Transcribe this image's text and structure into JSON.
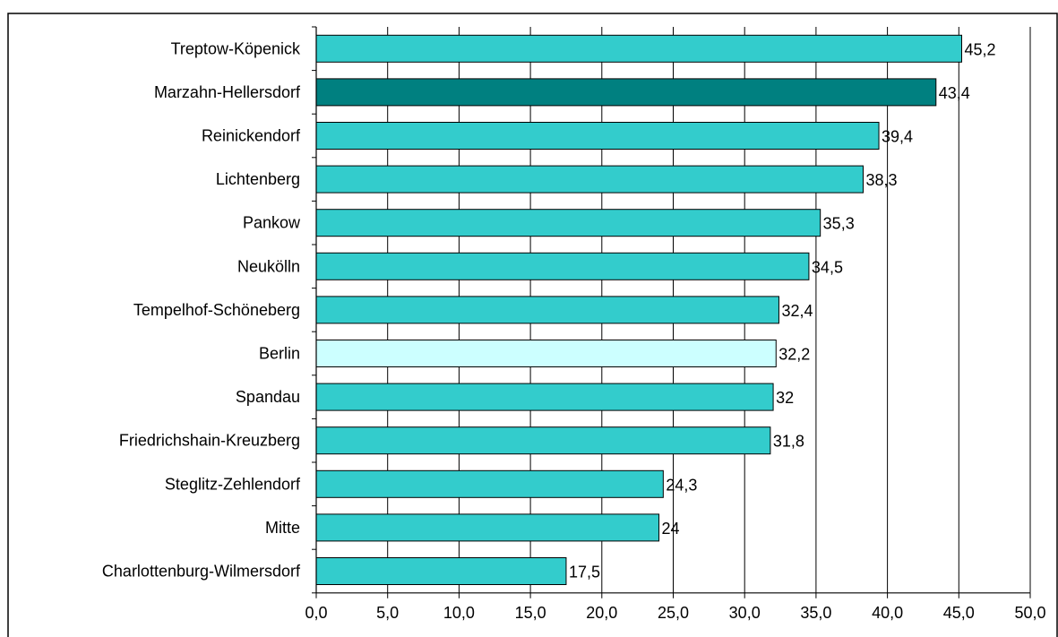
{
  "caption": "",
  "chart_data": {
    "type": "bar",
    "orientation": "horizontal",
    "categories": [
      "Treptow-Köpenick",
      "Marzahn-Hellersdorf",
      "Reinickendorf",
      "Lichtenberg",
      "Pankow",
      "Neukölln",
      "Tempelhof-Schöneberg",
      "Berlin",
      "Spandau",
      "Friedrichshain-Kreuzberg",
      "Steglitz-Zehlendorf",
      "Mitte",
      "Charlottenburg-Wilmersdorf"
    ],
    "values": [
      45.2,
      43.4,
      39.4,
      38.3,
      35.3,
      34.5,
      32.4,
      32.2,
      32,
      31.8,
      24.3,
      24,
      17.5
    ],
    "value_labels": [
      "45,2",
      "43,4",
      "39,4",
      "38,3",
      "35,3",
      "34,5",
      "32,4",
      "32,2",
      "32",
      "31,8",
      "24,3",
      "24",
      "17,5"
    ],
    "bar_colors": [
      "#33cccc",
      "#008080",
      "#33cccc",
      "#33cccc",
      "#33cccc",
      "#33cccc",
      "#33cccc",
      "#ccffff",
      "#33cccc",
      "#33cccc",
      "#33cccc",
      "#33cccc",
      "#33cccc"
    ],
    "x_ticks": [
      "0,0",
      "5,0",
      "10,0",
      "15,0",
      "20,0",
      "25,0",
      "30,0",
      "35,0",
      "40,0",
      "45,0",
      "50,0"
    ],
    "xlim": [
      0,
      50
    ],
    "grid": "vertical",
    "title": "",
    "xlabel": "",
    "ylabel": ""
  }
}
